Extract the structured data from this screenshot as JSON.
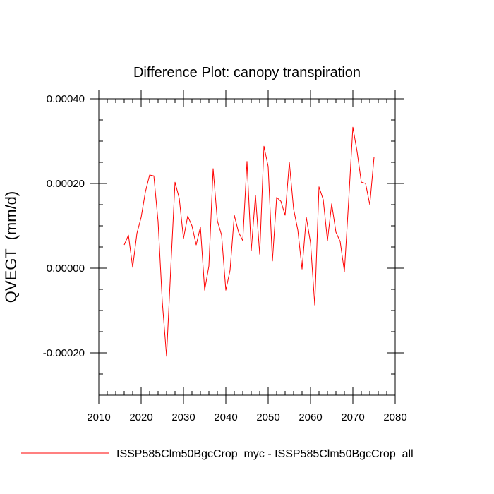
{
  "chart_data": {
    "type": "line",
    "title": "Difference Plot: canopy transpiration",
    "xlabel": "",
    "ylabel": "QVEGT  (mm/d)",
    "xlim": [
      2010,
      2080
    ],
    "ylim": [
      -0.0003,
      0.0004
    ],
    "x_ticks": [
      2010,
      2020,
      2030,
      2040,
      2050,
      2060,
      2070,
      2080
    ],
    "x_tick_labels": [
      "2010",
      "2020",
      "2030",
      "2040",
      "2050",
      "2060",
      "2070",
      "2080"
    ],
    "y_ticks": [
      -0.0002,
      0.0,
      0.0002,
      0.0004
    ],
    "y_tick_labels": [
      "-0.00020",
      "0.00000",
      "0.00020",
      "0.00040"
    ],
    "grid": false,
    "legend_position": "bottom",
    "series": [
      {
        "name": "ISSP585Clm50BgcCrop_myc - ISSP585Clm50BgcCrop_all",
        "color": "#ff0000",
        "x": [
          2016,
          2017,
          2018,
          2019,
          2020,
          2021,
          2022,
          2023,
          2024,
          2025,
          2026,
          2027,
          2028,
          2029,
          2030,
          2031,
          2032,
          2033,
          2034,
          2035,
          2036,
          2037,
          2038,
          2039,
          2040,
          2041,
          2042,
          2043,
          2044,
          2045,
          2046,
          2047,
          2048,
          2049,
          2050,
          2051,
          2052,
          2053,
          2054,
          2055,
          2056,
          2057,
          2058,
          2059,
          2060,
          2061,
          2062,
          2063,
          2064,
          2065,
          2066,
          2067,
          2068,
          2069,
          2070,
          2071,
          2072,
          2073,
          2074,
          2075
        ],
        "y": [
          5.5e-05,
          7.8e-05,
          2e-06,
          8.2e-05,
          0.00012,
          0.00018,
          0.00022,
          0.000218,
          0.00011,
          -8e-05,
          -0.000208,
          0.0,
          0.000203,
          0.000165,
          7e-05,
          0.000123,
          0.0001,
          5.5e-05,
          9.7e-05,
          -5.2e-05,
          5e-06,
          0.000235,
          0.000112,
          7.8e-05,
          -5.2e-05,
          -5e-06,
          0.000125,
          8.5e-05,
          6.5e-05,
          0.000252,
          4.2e-05,
          0.000172,
          3.3e-05,
          0.000288,
          0.00024,
          1.7e-05,
          0.000167,
          0.000158,
          0.000125,
          0.00025,
          0.00014,
          9e-05,
          -2e-06,
          0.00012,
          6e-05,
          -8.7e-05,
          0.000192,
          0.000162,
          6.5e-05,
          0.000152,
          8.5e-05,
          6.3e-05,
          -8e-06,
          0.000158,
          0.000333,
          0.000275,
          0.000203,
          0.0002,
          0.00015,
          0.000262
        ]
      }
    ]
  }
}
